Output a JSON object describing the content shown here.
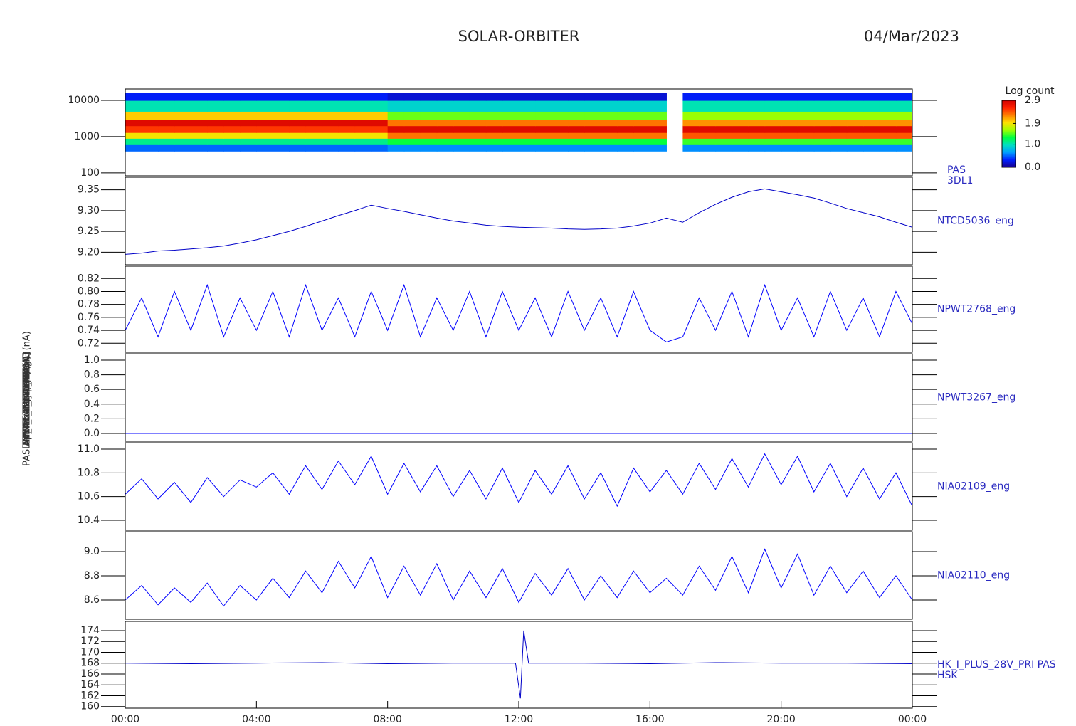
{
  "title": "SOLAR-ORBITER",
  "date": "04/Mar/2023",
  "chart_data": [
    {
      "type": "heatmap",
      "ylabel": "Energy (eV)",
      "label_lines": [
        "PAS",
        "3DL1"
      ],
      "log_y": true,
      "xlim": [
        0,
        24
      ],
      "ylim": [
        83,
        20600
      ],
      "yticks": [
        100,
        1000,
        10000
      ],
      "bins": [
        0,
        0.5,
        1,
        1.5,
        2,
        2.5,
        3,
        3.5,
        4,
        4.5,
        5,
        5.5,
        6,
        6.5,
        7,
        7.5,
        8,
        8.5,
        9,
        9.5,
        10,
        10.5,
        11,
        11.5,
        12,
        12.5,
        13,
        13.5,
        14,
        14.5,
        15,
        15.5,
        16,
        16.5,
        17,
        17.5,
        18,
        18.5,
        19,
        19.5,
        20,
        20.5,
        21,
        21.5,
        22,
        22.5,
        23,
        23.5,
        24
      ],
      "ybins": [
        400,
        600,
        900,
        1300,
        2000,
        3000,
        5000,
        10000,
        16000
      ],
      "z": [
        [
          0.5,
          0.5,
          0.5,
          0.5,
          0.5,
          0.5,
          0.5,
          0.5,
          0.5,
          0.5,
          0.5,
          0.5,
          0.5,
          0.5,
          0.5,
          0.5,
          0.6,
          0.6,
          0.6,
          0.6,
          0.6,
          0.6,
          0.6,
          0.6,
          0.6,
          0.6,
          0.6,
          0.6,
          0.6,
          0.6,
          0.6,
          0.6,
          0.6,
          null,
          0.6,
          0.6,
          0.6,
          0.6,
          0.6,
          0.6,
          0.6,
          0.6,
          0.6,
          0.6,
          0.6,
          0.6,
          0.6,
          0.6
        ],
        [
          1.1,
          1.1,
          1.1,
          1.1,
          1.1,
          1.1,
          1.1,
          1.1,
          1.1,
          1.1,
          1.1,
          1.1,
          1.1,
          1.1,
          1.1,
          1.1,
          1.3,
          1.3,
          1.3,
          1.3,
          1.3,
          1.3,
          1.3,
          1.3,
          1.3,
          1.3,
          1.3,
          1.3,
          1.3,
          1.3,
          1.3,
          1.3,
          1.3,
          null,
          1.4,
          1.4,
          1.4,
          1.4,
          1.4,
          1.4,
          1.4,
          1.4,
          1.4,
          1.4,
          1.4,
          1.4,
          1.4,
          1.4
        ],
        [
          1.9,
          1.9,
          1.9,
          1.9,
          1.9,
          1.9,
          1.9,
          1.9,
          1.9,
          1.9,
          1.9,
          1.9,
          1.9,
          1.9,
          1.9,
          1.9,
          2.3,
          2.3,
          2.3,
          2.3,
          2.3,
          2.3,
          2.3,
          2.3,
          2.3,
          2.3,
          2.3,
          2.3,
          2.3,
          2.3,
          2.3,
          2.3,
          2.3,
          null,
          2.4,
          2.4,
          2.4,
          2.4,
          2.4,
          2.4,
          2.4,
          2.4,
          2.4,
          2.4,
          2.4,
          2.4,
          2.4,
          2.4
        ],
        [
          2.5,
          2.5,
          2.5,
          2.5,
          2.5,
          2.5,
          2.5,
          2.5,
          2.5,
          2.5,
          2.5,
          2.5,
          2.5,
          2.5,
          2.5,
          2.5,
          2.8,
          2.8,
          2.8,
          2.8,
          2.8,
          2.8,
          2.8,
          2.8,
          2.8,
          2.8,
          2.8,
          2.8,
          2.8,
          2.8,
          2.8,
          2.8,
          2.8,
          null,
          2.8,
          2.8,
          2.8,
          2.8,
          2.8,
          2.8,
          2.8,
          2.8,
          2.8,
          2.8,
          2.8,
          2.8,
          2.8,
          2.8
        ],
        [
          2.8,
          2.8,
          2.8,
          2.8,
          2.8,
          2.8,
          2.8,
          2.8,
          2.8,
          2.8,
          2.8,
          2.8,
          2.8,
          2.8,
          2.8,
          2.8,
          2.3,
          2.3,
          2.3,
          2.3,
          2.3,
          2.3,
          2.3,
          2.3,
          2.3,
          2.3,
          2.3,
          2.3,
          2.3,
          2.3,
          2.3,
          2.3,
          2.3,
          null,
          2.2,
          2.2,
          2.2,
          2.2,
          2.2,
          2.2,
          2.2,
          2.2,
          2.2,
          2.2,
          2.2,
          2.2,
          2.2,
          2.2
        ],
        [
          2.0,
          2.0,
          2.0,
          2.0,
          2.0,
          2.0,
          2.0,
          2.0,
          2.0,
          2.0,
          2.0,
          2.0,
          2.0,
          2.0,
          2.0,
          2.0,
          1.5,
          1.5,
          1.5,
          1.5,
          1.5,
          1.5,
          1.5,
          1.5,
          1.5,
          1.5,
          1.5,
          1.5,
          1.5,
          1.5,
          1.5,
          1.5,
          1.5,
          null,
          1.6,
          1.6,
          1.6,
          1.6,
          1.6,
          1.6,
          1.6,
          1.6,
          1.6,
          1.6,
          1.6,
          1.6,
          1.6,
          1.6
        ],
        [
          1.0,
          1.0,
          1.0,
          1.0,
          1.0,
          1.0,
          1.0,
          1.0,
          1.0,
          1.0,
          1.0,
          1.0,
          1.0,
          1.0,
          1.0,
          1.0,
          0.9,
          0.9,
          0.9,
          0.9,
          0.9,
          0.9,
          0.9,
          0.9,
          0.9,
          0.9,
          0.9,
          0.9,
          0.9,
          0.9,
          0.9,
          0.9,
          0.9,
          null,
          1.0,
          1.0,
          1.0,
          1.0,
          1.0,
          1.0,
          1.0,
          1.0,
          1.0,
          1.0,
          1.0,
          1.0,
          1.0,
          1.0
        ],
        [
          0.3,
          0.3,
          0.3,
          0.3,
          0.3,
          0.3,
          0.3,
          0.3,
          0.3,
          0.3,
          0.3,
          0.3,
          0.3,
          0.3,
          0.3,
          0.3,
          0.2,
          0.2,
          0.2,
          0.2,
          0.2,
          0.2,
          0.2,
          0.2,
          0.2,
          0.2,
          0.2,
          0.2,
          0.2,
          0.2,
          0.2,
          0.2,
          0.2,
          null,
          0.3,
          0.3,
          0.3,
          0.3,
          0.3,
          0.3,
          0.3,
          0.3,
          0.3,
          0.3,
          0.3,
          0.3,
          0.3,
          0.3
        ]
      ],
      "colorbar_title": "Log count",
      "zlim": [
        0,
        2.9
      ],
      "zticks": [
        {
          "value": 0,
          "label": "0.0"
        },
        {
          "value": 1,
          "label": "1.0"
        },
        1.9,
        2.9
      ],
      "colormap": [
        "#18008c",
        "#0020ff",
        "#00a0ff",
        "#00e0c0",
        "#00ff40",
        "#a0ff00",
        "#ffe000",
        "#ff8000",
        "#ff2000",
        "#d00000"
      ]
    },
    {
      "type": "line",
      "ylabel": "Approx Temp (DegC)",
      "label_lines": [
        "NTCD5036_eng"
      ],
      "xlim": [
        0,
        24
      ],
      "ylim": [
        9.17,
        9.38
      ],
      "yticks": [
        {
          "value": 9.2,
          "label": "9.20"
        },
        9.25,
        {
          "value": 9.3,
          "label": "9.30"
        },
        9.35
      ],
      "x": [
        0,
        0.5,
        1,
        1.5,
        2,
        2.5,
        3,
        3.5,
        4,
        4.5,
        5,
        5.5,
        6,
        6.5,
        7,
        7.5,
        8,
        8.5,
        9,
        9.5,
        10,
        10.5,
        11,
        11.5,
        12,
        12.5,
        13,
        13.5,
        14,
        14.5,
        15,
        15.5,
        16,
        16.5,
        17,
        17.5,
        18,
        18.5,
        19,
        19.5,
        20,
        20.5,
        21,
        21.5,
        22,
        22.5,
        23,
        23.5,
        24
      ],
      "series": [
        {
          "color": "#0000c8",
          "values": [
            9.195,
            9.198,
            9.203,
            9.205,
            9.208,
            9.211,
            9.215,
            9.222,
            9.23,
            9.24,
            9.25,
            9.262,
            9.275,
            9.288,
            9.3,
            9.313,
            9.305,
            9.298,
            9.29,
            9.282,
            9.275,
            9.27,
            9.265,
            9.262,
            9.26,
            9.259,
            9.258,
            9.256,
            9.255,
            9.256,
            9.258,
            9.263,
            9.27,
            9.282,
            9.272,
            9.295,
            9.315,
            9.332,
            9.345,
            9.352,
            9.345,
            9.338,
            9.33,
            9.318,
            9.305,
            9.295,
            9.285,
            9.272,
            9.26
          ]
        }
      ]
    },
    {
      "type": "line",
      "ylabel": "SWA-EAS1 TEMP (V)",
      "label_lines": [
        "NPWT2768_eng"
      ],
      "xlim": [
        0,
        24
      ],
      "ylim": [
        0.706,
        0.839
      ],
      "yticks": [
        0.72,
        0.74,
        0.76,
        0.78,
        {
          "value": 0.8,
          "label": "0.80"
        },
        0.82
      ],
      "x": [
        0,
        0.5,
        1,
        1.5,
        2,
        2.5,
        3,
        3.5,
        4,
        4.5,
        5,
        5.5,
        6,
        6.5,
        7,
        7.5,
        8,
        8.5,
        9,
        9.5,
        10,
        10.5,
        11,
        11.5,
        12,
        12.5,
        13,
        13.5,
        14,
        14.5,
        15,
        15.5,
        16,
        16.5,
        17,
        17.5,
        18,
        18.5,
        19,
        19.5,
        20,
        20.5,
        21,
        21.5,
        22,
        22.5,
        23,
        23.5,
        24
      ],
      "series": [
        {
          "color": "#0000ff",
          "values": [
            0.74,
            0.79,
            0.73,
            0.8,
            0.74,
            0.81,
            0.73,
            0.79,
            0.74,
            0.8,
            0.73,
            0.81,
            0.74,
            0.79,
            0.73,
            0.8,
            0.74,
            0.81,
            0.73,
            0.79,
            0.74,
            0.8,
            0.73,
            0.8,
            0.74,
            0.79,
            0.73,
            0.8,
            0.74,
            0.79,
            0.73,
            0.8,
            0.74,
            0.722,
            0.73,
            0.79,
            0.74,
            0.8,
            0.73,
            0.81,
            0.74,
            0.79,
            0.73,
            0.8,
            0.74,
            0.79,
            0.73,
            0.8,
            0.75
          ]
        }
      ]
    },
    {
      "type": "line",
      "ylabel": "RPW LFR TEMP (V)",
      "label_lines": [
        "NPWT3267_eng"
      ],
      "xlim": [
        0,
        24
      ],
      "ylim": [
        -0.107,
        1.087
      ],
      "yticks": [
        {
          "value": 0,
          "label": "0.0"
        },
        0.2,
        0.4,
        0.6,
        0.8,
        {
          "value": 1,
          "label": "1.0"
        }
      ],
      "x": [
        0,
        24
      ],
      "series": [
        {
          "color": "#0000ff",
          "values": [
            0,
            0
          ]
        }
      ]
    },
    {
      "type": "line",
      "ylabel": "THERMC4 (mA)",
      "label_lines": [
        "NIA02109_eng"
      ],
      "xlim": [
        0,
        24
      ],
      "ylim": [
        10.316,
        11.054
      ],
      "yticks": [
        10.4,
        10.6,
        10.8,
        {
          "value": 11,
          "label": "11.0"
        }
      ],
      "x": [
        0,
        0.5,
        1,
        1.5,
        2,
        2.5,
        3,
        3.5,
        4,
        4.5,
        5,
        5.5,
        6,
        6.5,
        7,
        7.5,
        8,
        8.5,
        9,
        9.5,
        10,
        10.5,
        11,
        11.5,
        12,
        12.5,
        13,
        13.5,
        14,
        14.5,
        15,
        15.5,
        16,
        16.5,
        17,
        17.5,
        18,
        18.5,
        19,
        19.5,
        20,
        20.5,
        21,
        21.5,
        22,
        22.5,
        23,
        23.5,
        24
      ],
      "series": [
        {
          "color": "#0000ff",
          "values": [
            10.62,
            10.75,
            10.58,
            10.72,
            10.55,
            10.76,
            10.6,
            10.74,
            10.68,
            10.8,
            10.62,
            10.86,
            10.66,
            10.9,
            10.7,
            10.94,
            10.62,
            10.88,
            10.64,
            10.86,
            10.6,
            10.82,
            10.58,
            10.84,
            10.55,
            10.82,
            10.62,
            10.86,
            10.58,
            10.8,
            10.52,
            10.84,
            10.64,
            10.82,
            10.62,
            10.88,
            10.66,
            10.92,
            10.68,
            10.96,
            10.7,
            10.94,
            10.64,
            10.88,
            10.6,
            10.84,
            10.58,
            10.8,
            10.52
          ]
        }
      ]
    },
    {
      "type": "line",
      "ylabel": "RPW_HK_IMON (mA)",
      "label_lines": [
        "NIA02110_eng"
      ],
      "xlim": [
        0,
        24
      ],
      "ylim": [
        8.441,
        9.165
      ],
      "yticks": [
        8.6,
        8.8,
        {
          "value": 9,
          "label": "9.0"
        }
      ],
      "x": [
        0,
        0.5,
        1,
        1.5,
        2,
        2.5,
        3,
        3.5,
        4,
        4.5,
        5,
        5.5,
        6,
        6.5,
        7,
        7.5,
        8,
        8.5,
        9,
        9.5,
        10,
        10.5,
        11,
        11.5,
        12,
        12.5,
        13,
        13.5,
        14,
        14.5,
        15,
        15.5,
        16,
        16.5,
        17,
        17.5,
        18,
        18.5,
        19,
        19.5,
        20,
        20.5,
        21,
        21.5,
        22,
        22.5,
        23,
        23.5,
        24
      ],
      "series": [
        {
          "color": "#0000ff",
          "values": [
            8.6,
            8.72,
            8.56,
            8.7,
            8.58,
            8.74,
            8.55,
            8.72,
            8.6,
            8.78,
            8.62,
            8.84,
            8.66,
            8.92,
            8.7,
            8.96,
            8.62,
            8.88,
            8.64,
            8.9,
            8.6,
            8.84,
            8.62,
            8.86,
            8.58,
            8.82,
            8.64,
            8.86,
            8.6,
            8.8,
            8.62,
            8.84,
            8.66,
            8.78,
            8.64,
            8.88,
            8.68,
            8.96,
            8.66,
            9.02,
            8.7,
            8.98,
            8.64,
            8.88,
            8.66,
            8.84,
            8.62,
            8.8,
            8.6
          ]
        }
      ]
    },
    {
      "type": "line",
      "ylabel": "PASDM_HK_IMON_PRIME (nA)",
      "label_lines": [
        "HK_I_PLUS_28V_PRI PAS",
        "HSK"
      ],
      "xlim": [
        0,
        24
      ],
      "ylim": [
        159.7,
        175.7
      ],
      "yticks": [
        160,
        162,
        164,
        166,
        168,
        170,
        172,
        174
      ],
      "xticks": [
        {
          "value": 0,
          "label": "00:00"
        },
        {
          "value": 4,
          "label": "04:00"
        },
        {
          "value": 8,
          "label": "08:00"
        },
        {
          "value": 12,
          "label": "12:00"
        },
        {
          "value": 16,
          "label": "16:00"
        },
        {
          "value": 20,
          "label": "20:00"
        },
        {
          "value": 24,
          "label": "00:00"
        }
      ],
      "x": [
        0,
        2,
        4,
        6,
        8,
        10,
        11.9,
        12.05,
        12.15,
        12.3,
        14,
        16,
        18,
        20,
        22,
        24
      ],
      "series": [
        {
          "color": "#0000c8",
          "values": [
            168,
            167.9,
            168,
            168.1,
            167.9,
            168,
            168,
            161.5,
            174,
            168,
            168,
            167.9,
            168.1,
            168,
            168,
            167.9
          ]
        }
      ]
    }
  ]
}
